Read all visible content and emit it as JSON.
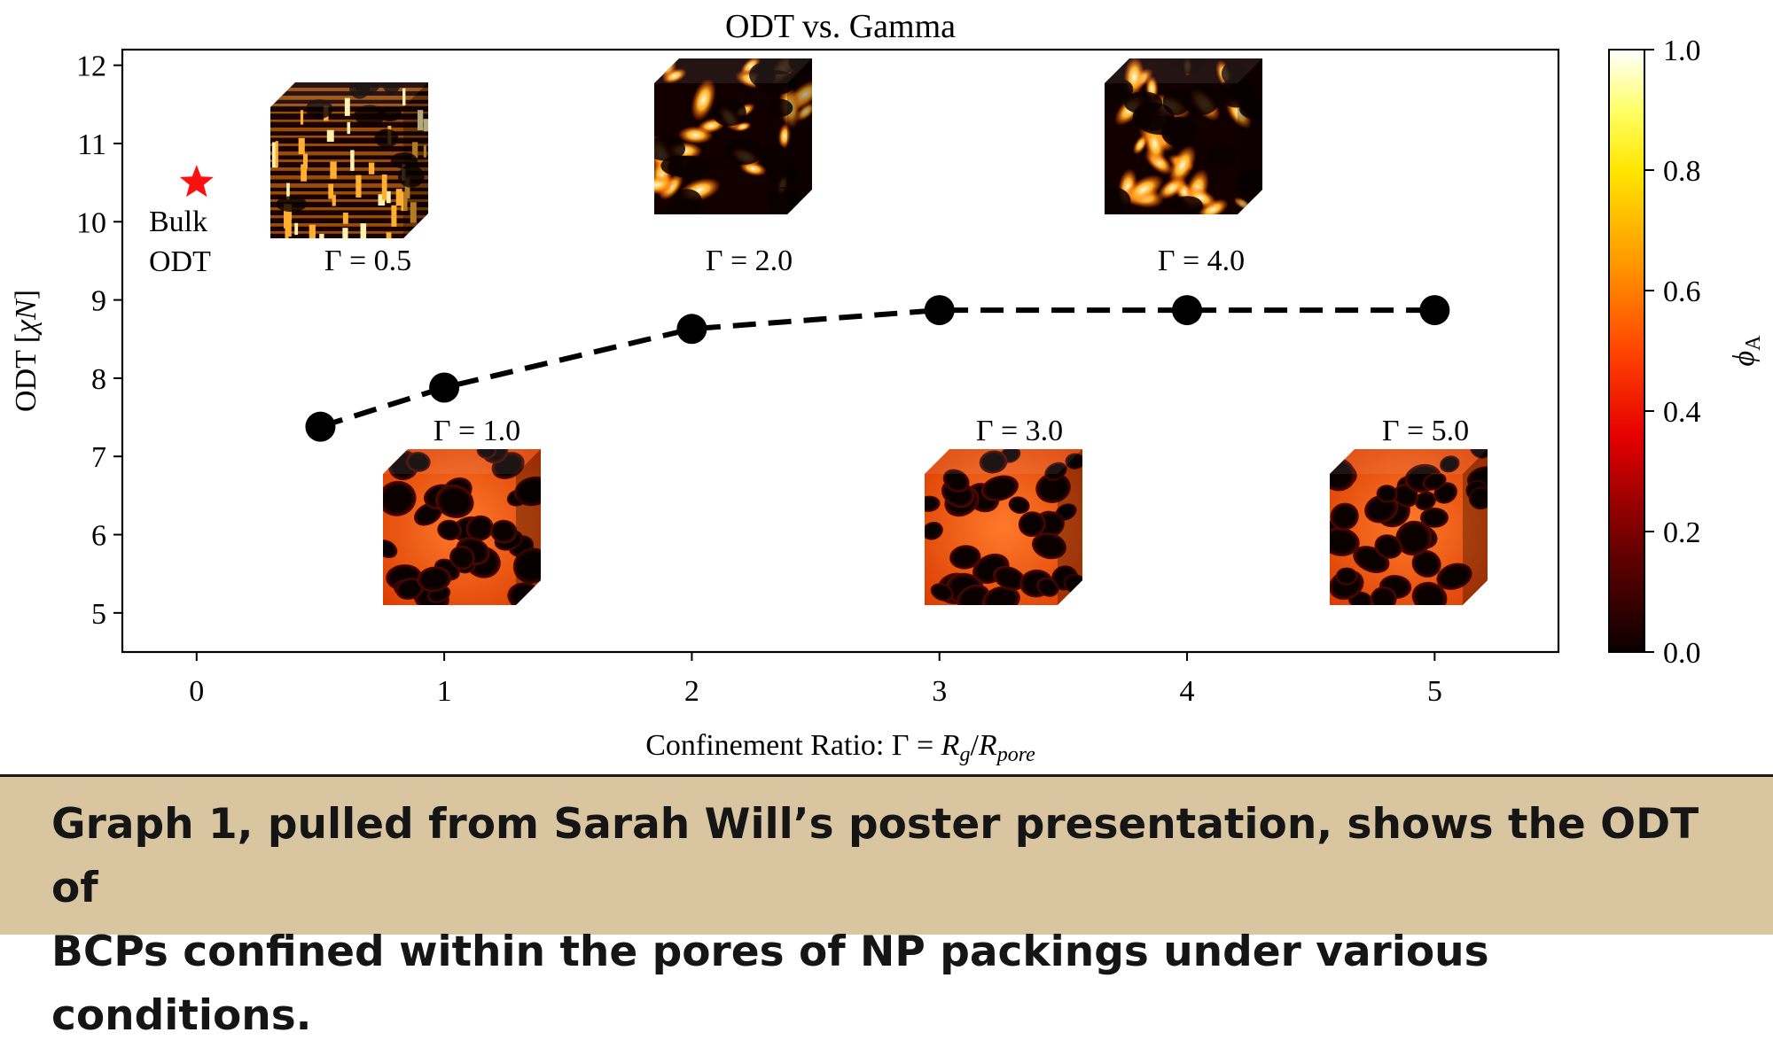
{
  "chart_data": {
    "type": "line",
    "title": "ODT vs. Gamma",
    "xlabel": "Confinement Ratio: Γ = R_g/R_pore",
    "ylabel": "ODT [χN]",
    "xlim": [
      -0.3,
      5.5
    ],
    "ylim": [
      4.5,
      12.2
    ],
    "xticks": [
      0,
      1,
      2,
      3,
      4,
      5
    ],
    "yticks": [
      5,
      6,
      7,
      8,
      9,
      10,
      11,
      12
    ],
    "series": [
      {
        "x": [
          0.5,
          1.0,
          2.0,
          3.0,
          4.0,
          5.0
        ],
        "y": [
          7.38,
          7.88,
          8.63,
          8.87,
          8.87,
          8.87
        ],
        "style": "dashed",
        "marker": "circle",
        "color": "#000000"
      }
    ],
    "bulk_point": {
      "x": 0,
      "y": 10.5,
      "marker": "star",
      "color": "#ff1010",
      "label_line1": "Bulk",
      "label_line2": "ODT"
    },
    "insets": [
      {
        "label": "Γ = 0.5",
        "style": "stripes"
      },
      {
        "label": "Γ = 2.0",
        "style": "blobs"
      },
      {
        "label": "Γ = 4.0",
        "style": "blobs"
      },
      {
        "label": "Γ = 1.0",
        "style": "spheres"
      },
      {
        "label": "Γ = 3.0",
        "style": "spheres"
      },
      {
        "label": "Γ = 5.0",
        "style": "spheres"
      }
    ],
    "colorbar": {
      "label": "ϕA",
      "range": [
        0.0,
        1.0
      ],
      "ticks": [
        "0.0",
        "0.2",
        "0.4",
        "0.6",
        "0.8",
        "1.0"
      ],
      "colormap": "hot"
    },
    "grid": false,
    "legend": "none"
  },
  "caption": {
    "line1": "Graph 1, pulled from Sarah Will’s poster presentation, shows the ODT of",
    "line2": "BCPs confined within the pores of NP packings under various conditions."
  },
  "colors": {
    "caption_background": "#d9c6a0",
    "accent_red": "#ff1010"
  }
}
